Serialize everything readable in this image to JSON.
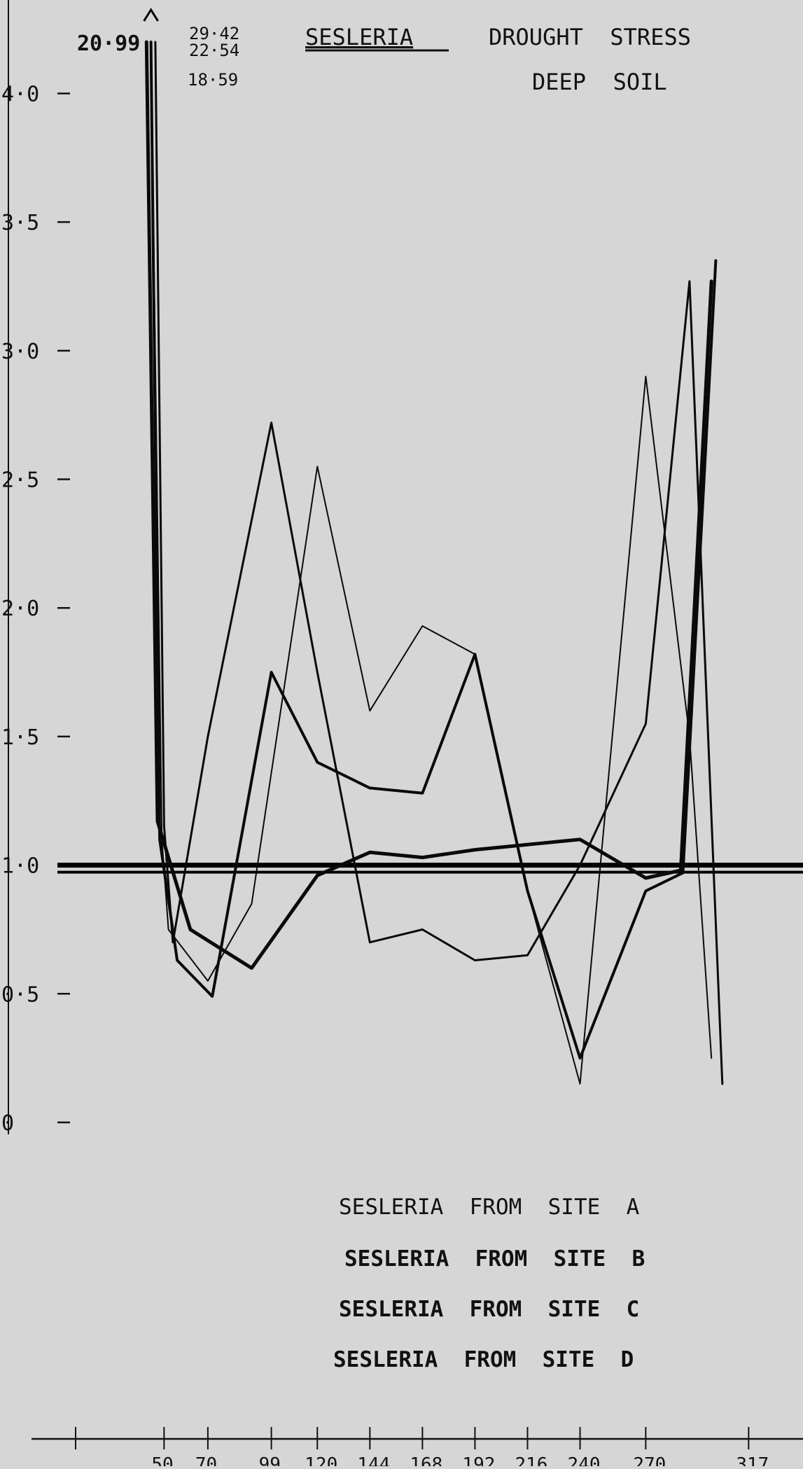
{
  "chart_data": {
    "type": "line",
    "title_parts": {
      "genus": "SESLERIA",
      "line1": "DROUGHT  STRESS",
      "line2": "DEEP  SOIL"
    },
    "annotations": {
      "peak_left": "20·99",
      "peak_values": [
        "29·42",
        "22·54",
        "18·59"
      ]
    },
    "y_ticks": [
      {
        "value": 4.0,
        "label": "4·0"
      },
      {
        "value": 3.5,
        "label": "3·5"
      },
      {
        "value": 3.0,
        "label": "3·0"
      },
      {
        "value": 2.5,
        "label": "2·5"
      },
      {
        "value": 2.0,
        "label": "2·0"
      },
      {
        "value": 1.5,
        "label": "1·5"
      },
      {
        "value": 1.0,
        "label": "1·0"
      },
      {
        "value": 0.5,
        "label": "0·5"
      },
      {
        "value": 0,
        "label": "0"
      }
    ],
    "ylim": [
      0,
      4.2
    ],
    "xlim": [
      0,
      330
    ],
    "x_ticks": [
      {
        "value": 0,
        "label": ""
      },
      {
        "value": 50,
        "label": "50"
      },
      {
        "value": 70,
        "label": "70"
      },
      {
        "value": 99,
        "label": "99"
      },
      {
        "value": 120,
        "label": "120"
      },
      {
        "value": 144,
        "label": "144"
      },
      {
        "value": 168,
        "label": "168"
      },
      {
        "value": 192,
        "label": "192"
      },
      {
        "value": 216,
        "label": "216"
      },
      {
        "value": 240,
        "label": "240"
      },
      {
        "value": 270,
        "label": "270"
      },
      {
        "value": 317,
        "label": "317"
      }
    ],
    "reference_line": 1.0,
    "series": [
      {
        "name": "SESLERIA  FROM  SITE  A",
        "weight": 2,
        "x": [
          44,
          49,
          52,
          70,
          90,
          120,
          144,
          168,
          192,
          216,
          240,
          270,
          290,
          300
        ],
        "y": [
          4.2,
          1.1,
          0.75,
          0.55,
          0.85,
          2.55,
          1.6,
          1.93,
          1.82,
          0.9,
          0.15,
          2.9,
          1.5,
          0.25
        ]
      },
      {
        "name": "SESLERIA  FROM  SITE  B",
        "weight": 3,
        "x": [
          46,
          50,
          54,
          70,
          99,
          120,
          144,
          168,
          192,
          216,
          240,
          270,
          290,
          305
        ],
        "y": [
          4.2,
          1.15,
          0.7,
          1.5,
          2.72,
          1.75,
          0.7,
          0.75,
          0.63,
          0.65,
          1.0,
          1.55,
          3.27,
          0.15
        ]
      },
      {
        "name": "SESLERIA  FROM  SITE  C",
        "weight": 4,
        "x": [
          44,
          48,
          56,
          72,
          99,
          120,
          144,
          168,
          192,
          216,
          240,
          270,
          287,
          302
        ],
        "y": [
          4.2,
          1.1,
          0.63,
          0.49,
          1.75,
          1.4,
          1.3,
          1.28,
          1.82,
          0.9,
          0.25,
          0.9,
          0.97,
          3.35
        ]
      },
      {
        "name": "SESLERIA  FROM  SITE  D",
        "weight": 5,
        "x": [
          42,
          47,
          62,
          90,
          120,
          144,
          168,
          192,
          216,
          240,
          270,
          286,
          300
        ],
        "y": [
          4.2,
          1.17,
          0.75,
          0.6,
          0.96,
          1.05,
          1.03,
          1.06,
          1.08,
          1.1,
          0.95,
          0.98,
          3.27
        ]
      }
    ]
  }
}
